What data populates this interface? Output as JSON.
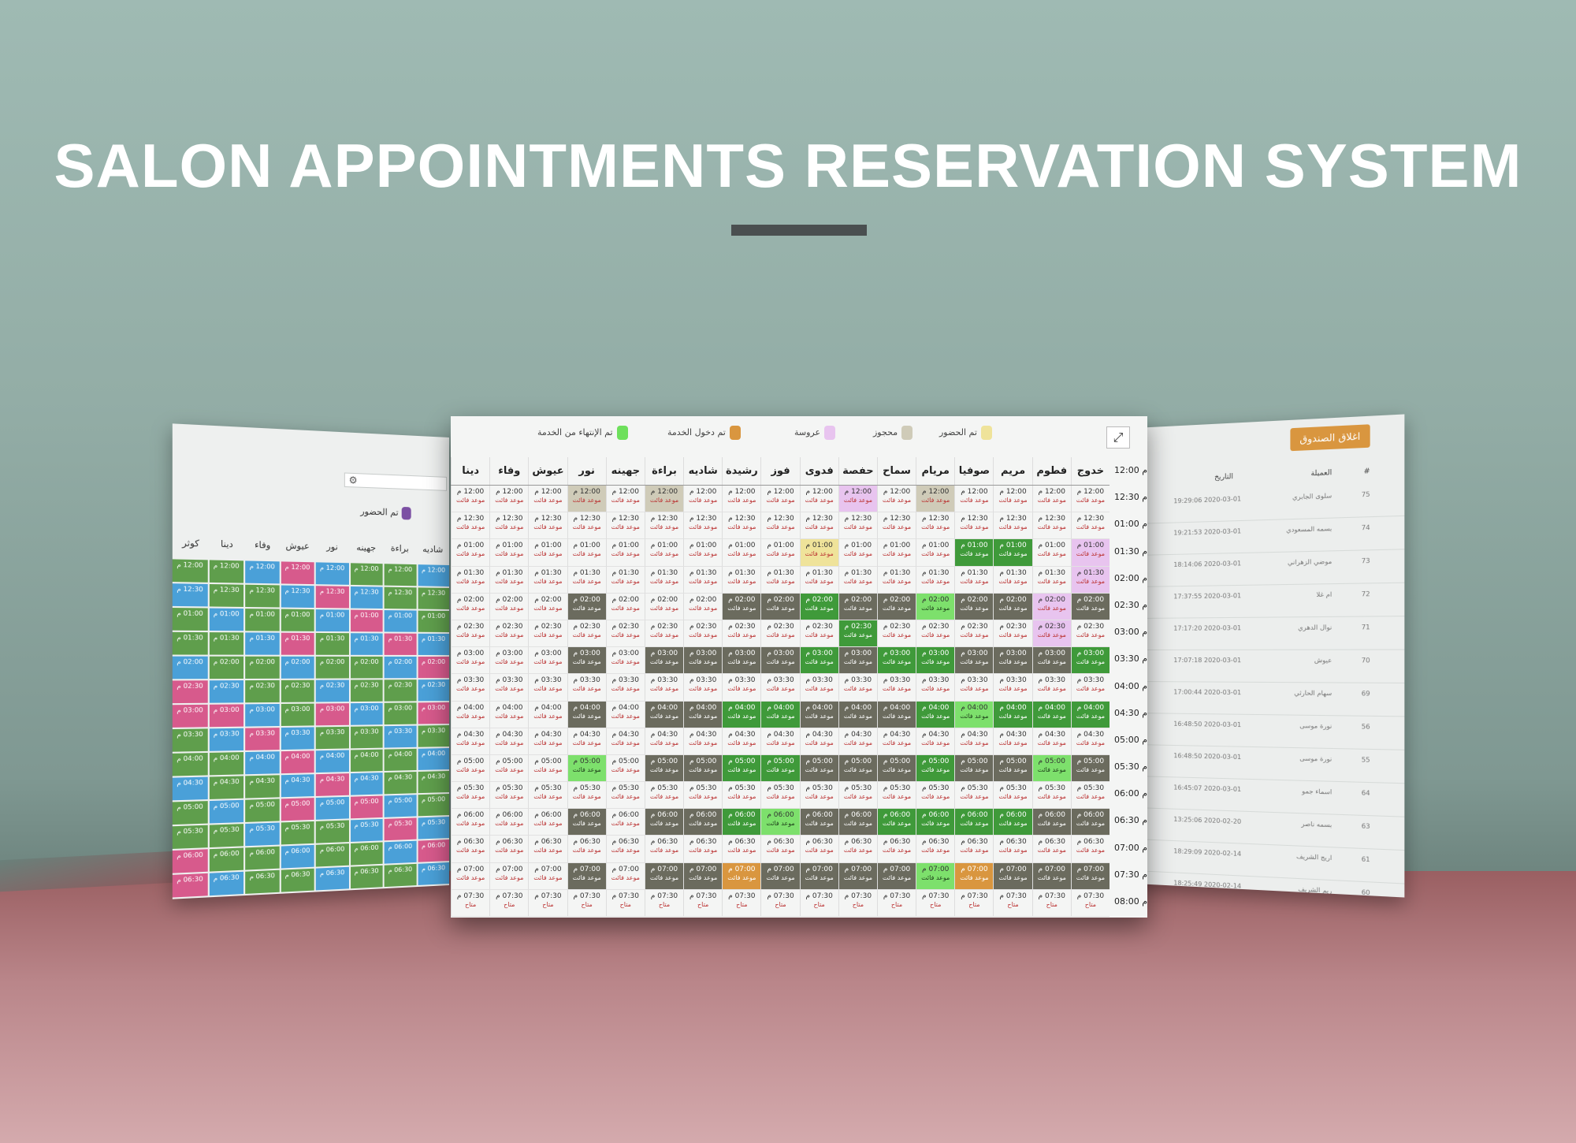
{
  "headline": "SALON APPOINTMENTS RESERVATION SYSTEM",
  "colors": {
    "attended": "#efe39a",
    "reserved": "#cfcbb8",
    "bride": "#e8c4ef",
    "service_entered": "#d9963f",
    "service_finished": "#6ee05c"
  },
  "legend": [
    {
      "label": "تم الحضور",
      "color": "#efe39a"
    },
    {
      "label": "محجوز",
      "color": "#cfcbb8"
    },
    {
      "label": "عروسة",
      "color": "#e8c4ef"
    },
    {
      "label": "تم دخول الخدمة",
      "color": "#d9963f"
    },
    {
      "label": "تم الإنتهاء من الخدمة",
      "color": "#6ee05c"
    }
  ],
  "expand_icon": "expand-arrows-icon",
  "staff": [
    "خدوج",
    "فطوم",
    "مريم",
    "صوفيا",
    "مريام",
    "سماح",
    "حفصة",
    "فدوى",
    "فوز",
    "رشيدة",
    "شاديه",
    "براءة",
    "جهينه",
    "نور",
    "عيوش",
    "وفاء",
    "دينا"
  ],
  "times": [
    "12:00 م",
    "12:30 م",
    "01:00 م",
    "01:30 م",
    "02:00 م",
    "02:30 م",
    "03:00 م",
    "03:30 م",
    "04:00 م",
    "04:30 م",
    "05:00 م",
    "05:30 م",
    "06:00 م",
    "06:30 م",
    "07:00 م",
    "07:30 م",
    "08:00 م"
  ],
  "slot_times": [
    "12:00 م",
    "12:30 م",
    "01:00 م",
    "01:30 م",
    "02:00 م",
    "02:30 م",
    "03:00 م",
    "03:30 م",
    "04:00 م",
    "04:30 م",
    "05:00 م",
    "05:30 م",
    "06:00 م",
    "06:30 م",
    "07:00 م",
    "07:30 م"
  ],
  "slot_status": "موعد فائت",
  "slot_status_last": "متاح",
  "left_panel": {
    "legend_label": "تم الحضور",
    "headers": [
      "شاديه",
      "براءة",
      "جهينه",
      "نور",
      "عيوش",
      "وفاء",
      "دينا",
      "كوثر"
    ]
  },
  "right_panel": {
    "close_button": "اغلاق الصندوق",
    "col_number": "#",
    "col_client": "العميلة",
    "col_date": "التاريخ",
    "rows": [
      {
        "num": "75",
        "client": "سلوى الجابري",
        "date": "19:29:06 2020-03-01"
      },
      {
        "num": "74",
        "client": "بسمه المسعودي",
        "date": "19:21:53 2020-03-01"
      },
      {
        "num": "73",
        "client": "موضي الزهراني",
        "date": "18:14:06 2020-03-01"
      },
      {
        "num": "72",
        "client": "ام غلا",
        "date": "17:37:55 2020-03-01"
      },
      {
        "num": "71",
        "client": "نوال الدهري",
        "date": "17:17:20 2020-03-01"
      },
      {
        "num": "70",
        "client": "عيوش",
        "date": "17:07:18 2020-03-01"
      },
      {
        "num": "69",
        "client": "سهام الحارثي",
        "date": "17:00:44 2020-03-01"
      },
      {
        "num": "56",
        "client": "نورة موسى",
        "date": "16:48:50 2020-03-01"
      },
      {
        "num": "55",
        "client": "نورة موسى",
        "date": "16:48:50 2020-03-01"
      },
      {
        "num": "64",
        "client": "اسماء جمو",
        "date": "16:45:07 2020-03-01"
      },
      {
        "num": "63",
        "client": "بسمه ناصر",
        "date": "13:25:06 2020-02-20"
      },
      {
        "num": "61",
        "client": "اريج الشريف",
        "date": "18:29:09 2020-02-14"
      },
      {
        "num": "60",
        "client": "ريم الشريف",
        "date": "18:25:49 2020-02-14"
      }
    ]
  }
}
